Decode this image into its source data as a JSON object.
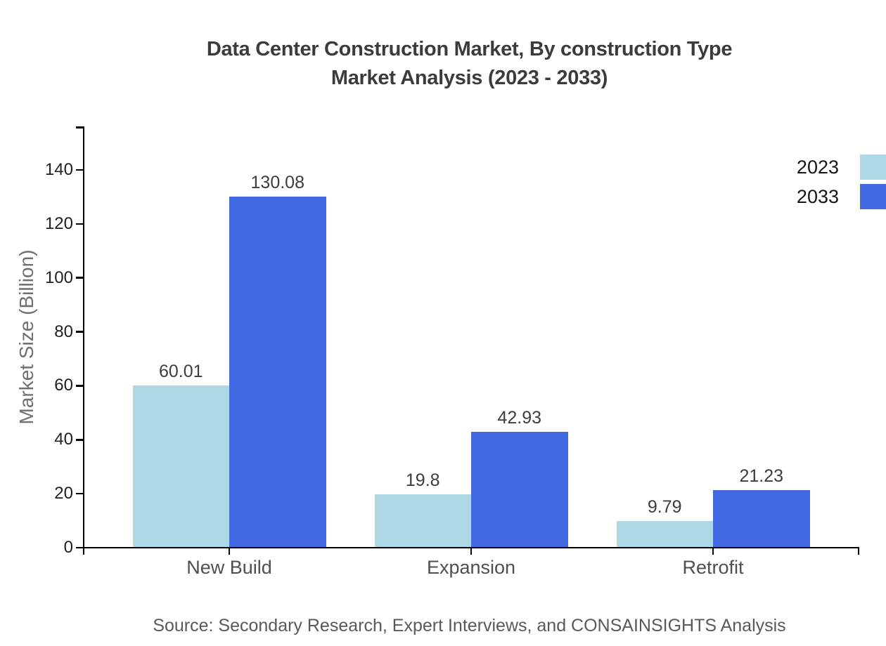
{
  "title": {
    "line1": "Data Center Construction Market, By construction Type",
    "line2": "Market Analysis (2023 - 2033)"
  },
  "source": "Source: Secondary Research, Expert Interviews, and CONSAINSIGHTS Analysis",
  "chart_data": {
    "type": "bar",
    "title": "Data Center Construction Market, By construction Type Market Analysis (2023 - 2033)",
    "categories": [
      "New Build",
      "Expansion",
      "Retrofit"
    ],
    "series": [
      {
        "name": "2023",
        "color": "#ADD8E6",
        "values": [
          60.01,
          19.8,
          9.79
        ],
        "labels": [
          "60.01",
          "19.8",
          "9.79"
        ]
      },
      {
        "name": "2033",
        "color": "#4169E1",
        "values": [
          130.08,
          42.93,
          21.23
        ],
        "labels": [
          "130.08",
          "42.93",
          "21.23"
        ]
      }
    ],
    "xlabel": "",
    "ylabel": "Market Size (Billion)",
    "yticks": [
      0,
      20,
      40,
      60,
      80,
      100,
      120,
      140
    ],
    "ylim": [
      0,
      156
    ],
    "grid": false,
    "legend_position": "top-right-outside",
    "axis_color": "#000000",
    "background_color": "#ffffff"
  }
}
